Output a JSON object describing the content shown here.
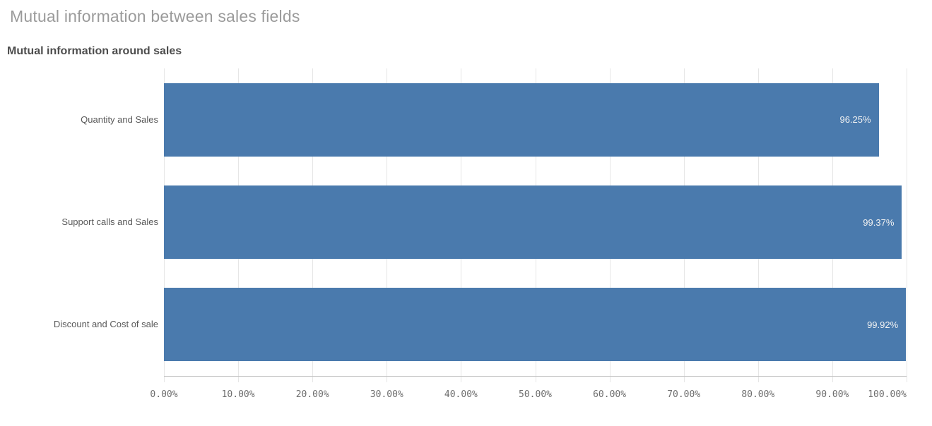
{
  "page": {
    "title": "Mutual information between sales fields"
  },
  "chart_data": {
    "type": "bar",
    "orientation": "horizontal",
    "title": "Mutual information around sales",
    "categories": [
      "Quantity and Sales",
      "Support calls and Sales",
      "Discount and Cost of sale"
    ],
    "values": [
      96.25,
      99.37,
      99.92
    ],
    "value_labels": [
      "96.25%",
      "99.37%",
      "99.92%"
    ],
    "xlabel": "",
    "ylabel": "",
    "xlim": [
      0,
      100
    ],
    "x_tick_step": 10,
    "x_tick_labels": [
      "0.00%",
      "10.00%",
      "20.00%",
      "30.00%",
      "40.00%",
      "50.00%",
      "60.00%",
      "70.00%",
      "80.00%",
      "90.00%",
      "100.00%"
    ],
    "grid": "vertical-gridlines",
    "legend": "none",
    "colors": {
      "bar": "#4a7aad",
      "value_label": "#f2f2f2",
      "gridline": "#e6e6e6",
      "axis_line": "#c2c2c2",
      "category_label": "#595959",
      "tick_label": "#6e6e6e"
    }
  }
}
